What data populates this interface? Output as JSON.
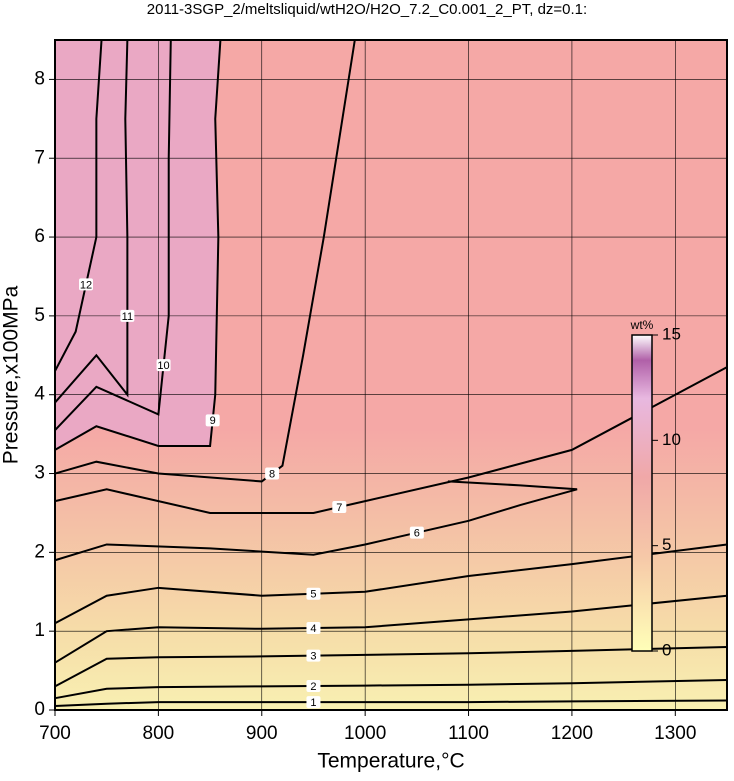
{
  "chart_data": {
    "type": "contour",
    "title": "2011-3SGP_2/meltsliquid/wtH2O/H2O_7.2_C0.001_2_PT, dz=0.1:",
    "x_label": "Temperature,°C",
    "y_label": "Pressure,x100MPa",
    "xlim": [
      700,
      1350
    ],
    "ylim": [
      0,
      8.5
    ],
    "xticks": [
      700,
      800,
      900,
      1000,
      1100,
      1200,
      1300
    ],
    "yticks": [
      0,
      1,
      2,
      3,
      4,
      5,
      6,
      7,
      8
    ],
    "grid": true,
    "contours": [
      {
        "level": 1,
        "x": [
          700,
          750,
          800,
          900,
          1000,
          1100,
          1200,
          1350
        ],
        "y": [
          0.05,
          0.08,
          0.1,
          0.1,
          0.1,
          0.1,
          0.11,
          0.12
        ]
      },
      {
        "level": 2,
        "x": [
          700,
          750,
          800,
          900,
          1000,
          1100,
          1200,
          1350
        ],
        "y": [
          0.15,
          0.27,
          0.29,
          0.3,
          0.31,
          0.32,
          0.34,
          0.38
        ]
      },
      {
        "level": 3,
        "x": [
          700,
          750,
          800,
          900,
          1000,
          1100,
          1200,
          1350
        ],
        "y": [
          0.3,
          0.65,
          0.67,
          0.68,
          0.7,
          0.72,
          0.75,
          0.8
        ]
      },
      {
        "level": 4,
        "x": [
          700,
          750,
          800,
          900,
          1000,
          1100,
          1200,
          1350
        ],
        "y": [
          0.6,
          1.0,
          1.05,
          1.03,
          1.05,
          1.15,
          1.25,
          1.45
        ]
      },
      {
        "level": 5,
        "x": [
          700,
          750,
          800,
          900,
          1000,
          1100,
          1200,
          1350
        ],
        "y": [
          1.1,
          1.45,
          1.55,
          1.45,
          1.5,
          1.7,
          1.85,
          2.1
        ]
      },
      {
        "level": 6,
        "x": [
          700,
          750,
          850,
          950,
          1000,
          1100,
          1150,
          1205,
          1150,
          1080
        ],
        "y": [
          1.9,
          2.1,
          2.05,
          1.97,
          2.1,
          2.4,
          2.6,
          2.8,
          2.85,
          2.9
        ]
      },
      {
        "level": 7,
        "x": [
          700,
          750,
          850,
          950,
          1000,
          1100,
          1200,
          1350
        ],
        "y": [
          2.65,
          2.8,
          2.5,
          2.5,
          2.65,
          2.95,
          3.3,
          4.35
        ]
      },
      {
        "level": 8,
        "x": [
          700,
          740,
          800,
          900,
          920,
          940,
          960,
          990
        ],
        "y": [
          3.0,
          3.15,
          3.0,
          2.9,
          3.1,
          4.5,
          6.0,
          8.5
        ]
      },
      {
        "level": 9,
        "x": [
          700,
          740,
          800,
          850,
          855,
          858,
          855,
          860
        ],
        "y": [
          3.3,
          3.6,
          3.35,
          3.35,
          4.0,
          6.0,
          7.5,
          8.5
        ]
      },
      {
        "level": 10,
        "x": [
          700,
          740,
          800,
          810,
          810,
          812
        ],
        "y": [
          3.55,
          4.1,
          3.75,
          5.0,
          7.0,
          8.5
        ]
      },
      {
        "level": 11,
        "x": [
          700,
          740,
          770,
          770,
          768,
          770
        ],
        "y": [
          3.9,
          4.5,
          4.0,
          6.0,
          7.5,
          8.5
        ]
      },
      {
        "level": 12,
        "x": [
          700,
          720,
          740,
          740,
          745
        ],
        "y": [
          4.3,
          4.8,
          6.0,
          7.5,
          8.5
        ]
      }
    ],
    "colorbar": {
      "label": "wt%",
      "lim": [
        0,
        15
      ],
      "ticks": [
        0,
        5,
        10,
        15
      ]
    }
  }
}
